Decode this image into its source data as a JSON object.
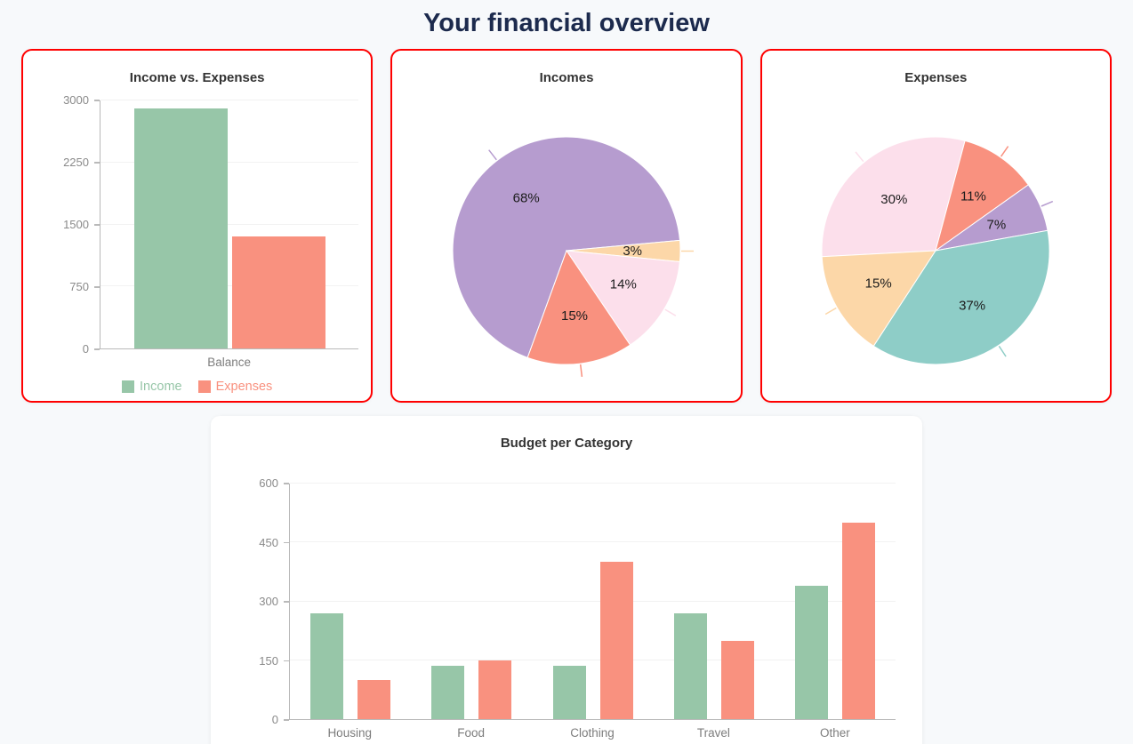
{
  "page": {
    "title": "Your financial overview"
  },
  "colors": {
    "green": "#97c6a8",
    "salmon": "#f9917f",
    "purple": "#b69ccf",
    "peach": "#fcd7a8",
    "pink": "#fcdfeb",
    "teal": "#8ecdc7",
    "card_border": "#ff0000"
  },
  "chart_data": [
    {
      "type": "bar",
      "title": "Income vs. Expenses",
      "categories": [
        "Balance"
      ],
      "series": [
        {
          "name": "Income",
          "color_key": "green",
          "values": [
            2900
          ]
        },
        {
          "name": "Expenses",
          "color_key": "salmon",
          "values": [
            1350
          ]
        }
      ],
      "ylim": [
        0,
        3000
      ],
      "yticks": [
        0,
        750,
        1500,
        2250,
        3000
      ],
      "legend": true,
      "legend_position": "bottom",
      "grid": false
    },
    {
      "type": "pie",
      "title": "Incomes",
      "start_angle": 200,
      "slices": [
        {
          "label": "68%",
          "percent": 68,
          "color_key": "purple"
        },
        {
          "label": "3%",
          "percent": 3,
          "color_key": "peach"
        },
        {
          "label": "14%",
          "percent": 14,
          "color_key": "pink"
        },
        {
          "label": "15%",
          "percent": 15,
          "color_key": "salmon"
        }
      ]
    },
    {
      "type": "pie",
      "title": "Expenses",
      "start_angle": 267,
      "slices": [
        {
          "label": "30%",
          "percent": 30,
          "color_key": "pink"
        },
        {
          "label": "11%",
          "percent": 11,
          "color_key": "salmon"
        },
        {
          "label": "7%",
          "percent": 7,
          "color_key": "purple"
        },
        {
          "label": "37%",
          "percent": 37,
          "color_key": "teal"
        },
        {
          "label": "15%",
          "percent": 15,
          "color_key": "peach"
        }
      ]
    },
    {
      "type": "bar",
      "title": "Budget per Category",
      "categories": [
        "Housing",
        "Food",
        "Clothing",
        "Travel",
        "Other"
      ],
      "series": [
        {
          "color_key": "green",
          "values": [
            270,
            135,
            135,
            270,
            340
          ]
        },
        {
          "color_key": "salmon",
          "values": [
            100,
            150,
            400,
            200,
            500
          ]
        }
      ],
      "ylim": [
        0,
        600
      ],
      "yticks": [
        0,
        150,
        300,
        450,
        600
      ],
      "legend": false,
      "grid": false
    }
  ]
}
